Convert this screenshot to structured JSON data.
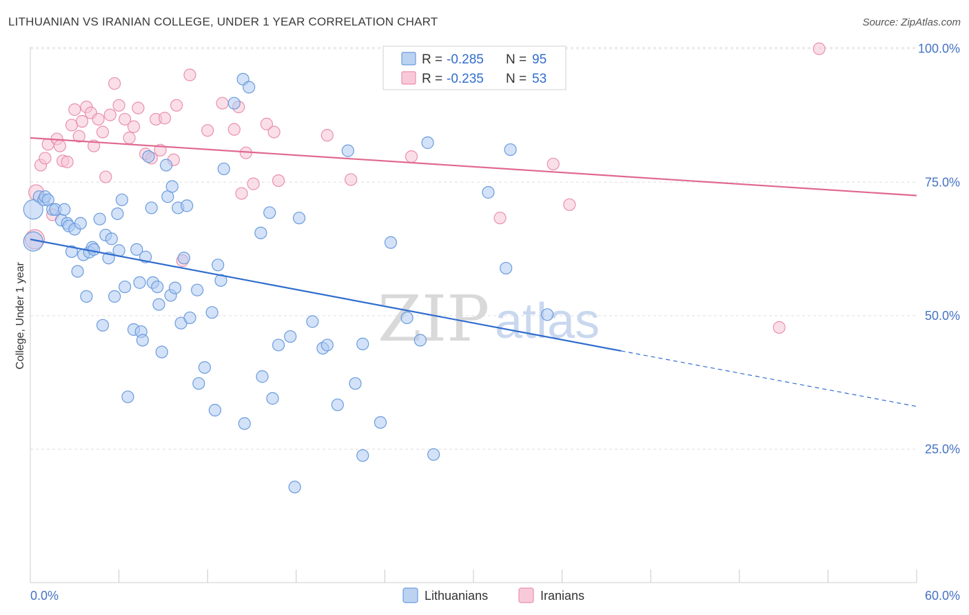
{
  "header": {
    "title": "LITHUANIAN VS IRANIAN COLLEGE, UNDER 1 YEAR CORRELATION CHART",
    "source": "Source: ZipAtlas.com"
  },
  "watermark": {
    "zip": "ZIP",
    "atlas": "atlas"
  },
  "legend": {
    "r_label": "R =",
    "n_label": "N =",
    "rows": [
      {
        "series": "Lithuanians",
        "r": "-0.285",
        "n": "95",
        "color": "#8fb4e8"
      },
      {
        "series": "Iranians",
        "r": "-0.235",
        "n": "53",
        "color": "#f4a7c0"
      }
    ]
  },
  "colors": {
    "lithuanian_fill": "#aecbf2",
    "lithuanian_stroke": "#6a9bdc",
    "lithuanian_line": "#2f6ccd",
    "iranian_fill": "#f8c4d5",
    "iranian_stroke": "#e98fae",
    "iranian_line": "#e0688f",
    "grid": "#dddddd",
    "tick_text": "#4472c4"
  },
  "chart_data": {
    "type": "scatter",
    "title": "LITHUANIAN VS IRANIAN COLLEGE, UNDER 1 YEAR CORRELATION CHART",
    "xlabel": "",
    "ylabel": "College, Under 1 year",
    "xlim": [
      0,
      60
    ],
    "ylim": [
      0,
      105
    ],
    "x_tick_labels": [
      "0.0%",
      "60.0%"
    ],
    "y_ticks": [
      25,
      50,
      75,
      100
    ],
    "y_tick_labels": [
      "25.0%",
      "50.0%",
      "75.0%",
      "100.0%"
    ],
    "grid": true,
    "legend_position": "top-center",
    "series": [
      {
        "name": "Lithuanians",
        "trend": {
          "x0": 0,
          "y0": 64.3,
          "x1": 40,
          "y1": 43.4,
          "dashed_to_x": 60,
          "dashed_to_y": 33.0
        },
        "points": [
          [
            0.2,
            69.9,
            3
          ],
          [
            0.2,
            63.9,
            3
          ],
          [
            0.6,
            72.3,
            1
          ],
          [
            0.9,
            71.7,
            1
          ],
          [
            1.0,
            72.3,
            1
          ],
          [
            1.2,
            71.7,
            1
          ],
          [
            1.5,
            69.9,
            1
          ],
          [
            1.7,
            69.9,
            1
          ],
          [
            2.1,
            67.9,
            1
          ],
          [
            2.3,
            69.9,
            1
          ],
          [
            2.5,
            67.3,
            1
          ],
          [
            2.6,
            66.8,
            1
          ],
          [
            3.0,
            66.2,
            1
          ],
          [
            3.4,
            67.3,
            1
          ],
          [
            2.8,
            62.0,
            1
          ],
          [
            3.2,
            58.3,
            1
          ],
          [
            3.6,
            61.4,
            1
          ],
          [
            3.8,
            53.6,
            1
          ],
          [
            4.0,
            61.9,
            1
          ],
          [
            4.2,
            62.8,
            1
          ],
          [
            4.3,
            62.4,
            1
          ],
          [
            4.7,
            68.1,
            1
          ],
          [
            4.9,
            48.2,
            1
          ],
          [
            5.1,
            65.1,
            1
          ],
          [
            5.3,
            60.8,
            1
          ],
          [
            5.5,
            64.4,
            1
          ],
          [
            5.7,
            53.6,
            1
          ],
          [
            5.9,
            69.1,
            1
          ],
          [
            6.0,
            62.2,
            1
          ],
          [
            6.2,
            71.7,
            1
          ],
          [
            6.4,
            55.4,
            1
          ],
          [
            6.6,
            34.8,
            1
          ],
          [
            7.0,
            47.4,
            1
          ],
          [
            7.2,
            62.4,
            1
          ],
          [
            7.4,
            56.2,
            1
          ],
          [
            7.5,
            47.0,
            1
          ],
          [
            7.6,
            45.4,
            1
          ],
          [
            7.8,
            61.0,
            1
          ],
          [
            8.0,
            79.8,
            1
          ],
          [
            8.2,
            70.2,
            1
          ],
          [
            8.3,
            56.2,
            1
          ],
          [
            8.6,
            55.4,
            1
          ],
          [
            8.7,
            52.1,
            1
          ],
          [
            8.9,
            43.2,
            1
          ],
          [
            9.2,
            78.2,
            1
          ],
          [
            9.3,
            72.3,
            1
          ],
          [
            9.5,
            53.8,
            1
          ],
          [
            9.6,
            74.2,
            1
          ],
          [
            9.8,
            55.2,
            1
          ],
          [
            10.0,
            70.2,
            1
          ],
          [
            10.2,
            48.6,
            1
          ],
          [
            10.4,
            60.8,
            1
          ],
          [
            10.6,
            70.6,
            1
          ],
          [
            10.8,
            49.6,
            1
          ],
          [
            11.3,
            54.8,
            1
          ],
          [
            11.4,
            37.3,
            1
          ],
          [
            11.8,
            40.3,
            1
          ],
          [
            12.3,
            50.6,
            1
          ],
          [
            12.5,
            32.3,
            1
          ],
          [
            12.7,
            59.5,
            1
          ],
          [
            12.9,
            56.6,
            1
          ],
          [
            13.1,
            77.5,
            1
          ],
          [
            13.8,
            89.8,
            1
          ],
          [
            14.4,
            94.3,
            1
          ],
          [
            14.5,
            29.8,
            1
          ],
          [
            14.8,
            92.8,
            1
          ],
          [
            15.6,
            65.5,
            1
          ],
          [
            15.7,
            38.6,
            1
          ],
          [
            16.2,
            69.3,
            1
          ],
          [
            16.4,
            34.5,
            1
          ],
          [
            16.8,
            44.5,
            1
          ],
          [
            17.6,
            46.1,
            1
          ],
          [
            17.9,
            17.9,
            1
          ],
          [
            18.2,
            68.3,
            1
          ],
          [
            19.1,
            48.9,
            1
          ],
          [
            19.8,
            43.9,
            1
          ],
          [
            20.1,
            44.5,
            1
          ],
          [
            20.8,
            33.3,
            1
          ],
          [
            21.5,
            80.9,
            1
          ],
          [
            22.0,
            37.3,
            1
          ],
          [
            22.5,
            44.7,
            1
          ],
          [
            22.5,
            23.8,
            1
          ],
          [
            23.7,
            30.0,
            1
          ],
          [
            24.4,
            63.7,
            1
          ],
          [
            25.5,
            49.6,
            1
          ],
          [
            26.4,
            45.4,
            1
          ],
          [
            26.9,
            82.4,
            1
          ],
          [
            27.3,
            24.0,
            1
          ],
          [
            31.0,
            73.1,
            1
          ],
          [
            32.2,
            58.9,
            1
          ],
          [
            32.5,
            81.1,
            1
          ],
          [
            35.0,
            50.2,
            1
          ]
        ]
      },
      {
        "name": "Iranians",
        "trend": {
          "x0": 0,
          "y0": 83.3,
          "x1": 60,
          "y1": 72.5
        },
        "points": [
          [
            0.4,
            73.1,
            2
          ],
          [
            0.3,
            64.3,
            3
          ],
          [
            0.7,
            78.2,
            1
          ],
          [
            1.0,
            79.5,
            1
          ],
          [
            1.2,
            82.1,
            1
          ],
          [
            1.5,
            68.9,
            1
          ],
          [
            1.8,
            83.1,
            1
          ],
          [
            2.0,
            81.8,
            1
          ],
          [
            2.2,
            79.0,
            1
          ],
          [
            2.5,
            78.8,
            1
          ],
          [
            2.8,
            85.7,
            1
          ],
          [
            3.0,
            88.6,
            1
          ],
          [
            3.3,
            83.6,
            1
          ],
          [
            3.5,
            86.4,
            1
          ],
          [
            3.8,
            89.1,
            1
          ],
          [
            4.1,
            88.0,
            1
          ],
          [
            4.3,
            81.8,
            1
          ],
          [
            4.6,
            86.8,
            1
          ],
          [
            4.9,
            84.4,
            1
          ],
          [
            5.1,
            76.0,
            1
          ],
          [
            5.4,
            87.6,
            1
          ],
          [
            5.7,
            93.5,
            1
          ],
          [
            6.0,
            89.4,
            1
          ],
          [
            6.4,
            86.8,
            1
          ],
          [
            6.7,
            83.3,
            1
          ],
          [
            7.0,
            85.4,
            1
          ],
          [
            7.3,
            88.9,
            1
          ],
          [
            7.8,
            80.3,
            1
          ],
          [
            8.2,
            79.5,
            1
          ],
          [
            8.5,
            86.8,
            1
          ],
          [
            8.8,
            81.0,
            1
          ],
          [
            9.1,
            87.0,
            1
          ],
          [
            9.7,
            79.2,
            1
          ],
          [
            9.9,
            89.4,
            1
          ],
          [
            10.3,
            60.3,
            1
          ],
          [
            10.8,
            95.1,
            1
          ],
          [
            12.0,
            84.7,
            1
          ],
          [
            13.0,
            89.8,
            1
          ],
          [
            13.8,
            84.9,
            1
          ],
          [
            14.1,
            89.1,
            1
          ],
          [
            14.3,
            72.9,
            1
          ],
          [
            14.6,
            80.5,
            1
          ],
          [
            15.1,
            74.7,
            1
          ],
          [
            16.0,
            85.9,
            1
          ],
          [
            16.5,
            84.4,
            1
          ],
          [
            16.8,
            75.3,
            1
          ],
          [
            20.1,
            83.8,
            1
          ],
          [
            21.7,
            75.5,
            1
          ],
          [
            25.8,
            79.8,
            1
          ],
          [
            31.8,
            68.3,
            1
          ],
          [
            35.4,
            78.4,
            1
          ],
          [
            36.5,
            70.8,
            1
          ],
          [
            50.7,
            47.8,
            1
          ],
          [
            53.4,
            100.0,
            1
          ]
        ]
      }
    ]
  }
}
